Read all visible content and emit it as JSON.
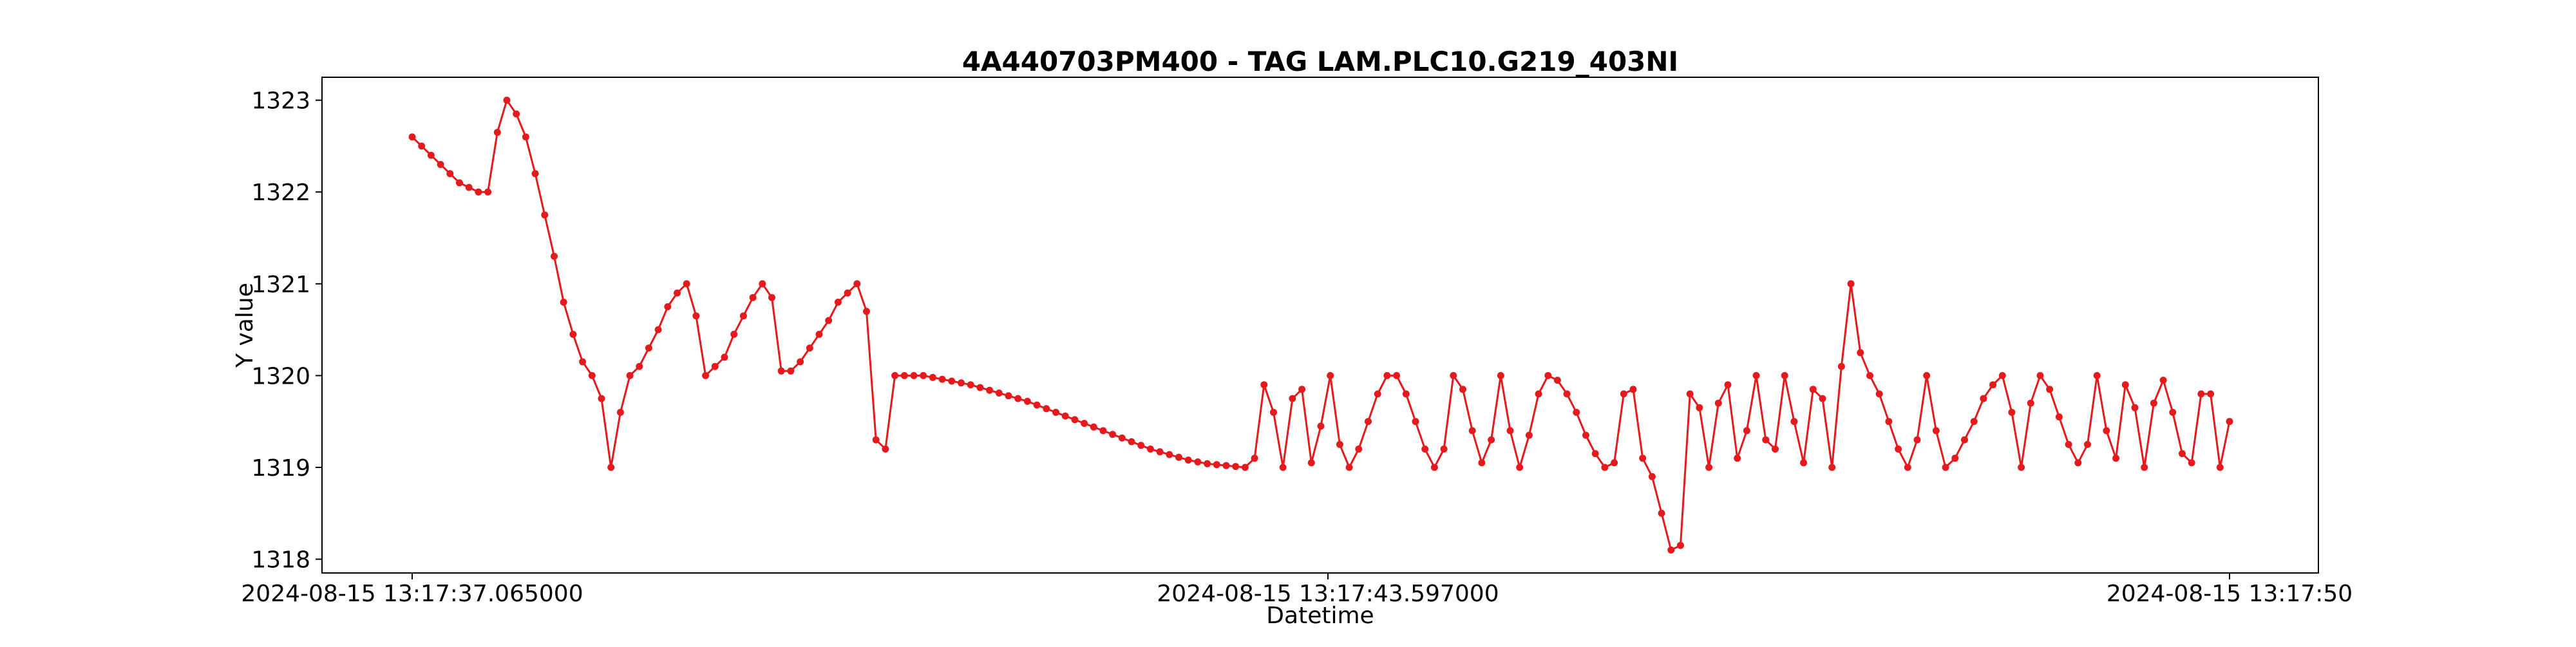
{
  "chart_data": {
    "type": "line",
    "title": "4A440703PM400 - TAG LAM.PLC10.G219_403NI",
    "xlabel": "Datetime",
    "ylabel": "Y value",
    "x_tick_labels": [
      "2024-08-15 13:17:37.065000",
      "2024-08-15 13:17:43.597000",
      "2024-08-15 13:17:50"
    ],
    "y_ticks": [
      1318,
      1319,
      1320,
      1321,
      1322,
      1323
    ],
    "ylim": [
      1317.85,
      1323.25
    ],
    "grid": false,
    "legend": "none",
    "series": [
      {
        "color": "#e41a1c",
        "marker": "circle",
        "y": [
          1322.6,
          1322.5,
          1322.4,
          1322.3,
          1322.2,
          1322.1,
          1322.05,
          1322.0,
          1322.0,
          1322.65,
          1323.0,
          1322.85,
          1322.6,
          1322.2,
          1321.75,
          1321.3,
          1320.8,
          1320.45,
          1320.15,
          1320.0,
          1319.75,
          1319.0,
          1319.6,
          1320.0,
          1320.1,
          1320.3,
          1320.5,
          1320.75,
          1320.9,
          1321.0,
          1320.65,
          1320.0,
          1320.1,
          1320.2,
          1320.45,
          1320.65,
          1320.85,
          1321.0,
          1320.85,
          1320.05,
          1320.05,
          1320.15,
          1320.3,
          1320.45,
          1320.6,
          1320.8,
          1320.9,
          1321.0,
          1320.7,
          1319.3,
          1319.2,
          1320.0,
          1320.0,
          1320.0,
          1320.0,
          1319.98,
          1319.96,
          1319.94,
          1319.92,
          1319.9,
          1319.87,
          1319.84,
          1319.81,
          1319.78,
          1319.75,
          1319.72,
          1319.68,
          1319.64,
          1319.6,
          1319.56,
          1319.52,
          1319.48,
          1319.44,
          1319.4,
          1319.36,
          1319.32,
          1319.28,
          1319.24,
          1319.2,
          1319.17,
          1319.14,
          1319.11,
          1319.08,
          1319.06,
          1319.04,
          1319.03,
          1319.02,
          1319.01,
          1319.0,
          1319.1,
          1319.9,
          1319.6,
          1319.0,
          1319.75,
          1319.85,
          1319.05,
          1319.45,
          1320.0,
          1319.25,
          1319.0,
          1319.2,
          1319.5,
          1319.8,
          1320.0,
          1320.0,
          1319.8,
          1319.5,
          1319.2,
          1319.0,
          1319.2,
          1320.0,
          1319.85,
          1319.4,
          1319.05,
          1319.3,
          1320.0,
          1319.4,
          1319.0,
          1319.35,
          1319.8,
          1320.0,
          1319.95,
          1319.8,
          1319.6,
          1319.35,
          1319.15,
          1319.0,
          1319.05,
          1319.8,
          1319.85,
          1319.1,
          1318.9,
          1318.5,
          1318.1,
          1318.15,
          1319.8,
          1319.65,
          1319.0,
          1319.7,
          1319.9,
          1319.1,
          1319.4,
          1320.0,
          1319.3,
          1319.2,
          1320.0,
          1319.5,
          1319.05,
          1319.85,
          1319.75,
          1319.0,
          1320.1,
          1321.0,
          1320.25,
          1320.0,
          1319.8,
          1319.5,
          1319.2,
          1319.0,
          1319.3,
          1320.0,
          1319.4,
          1319.0,
          1319.1,
          1319.3,
          1319.5,
          1319.75,
          1319.9,
          1320.0,
          1319.6,
          1319.0,
          1319.7,
          1320.0,
          1319.85,
          1319.55,
          1319.25,
          1319.05,
          1319.25,
          1320.0,
          1319.4,
          1319.1,
          1319.9,
          1319.65,
          1319.0,
          1319.7,
          1319.95,
          1319.6,
          1319.15,
          1319.05,
          1319.8,
          1319.8,
          1319.0,
          1319.5
        ]
      }
    ]
  }
}
